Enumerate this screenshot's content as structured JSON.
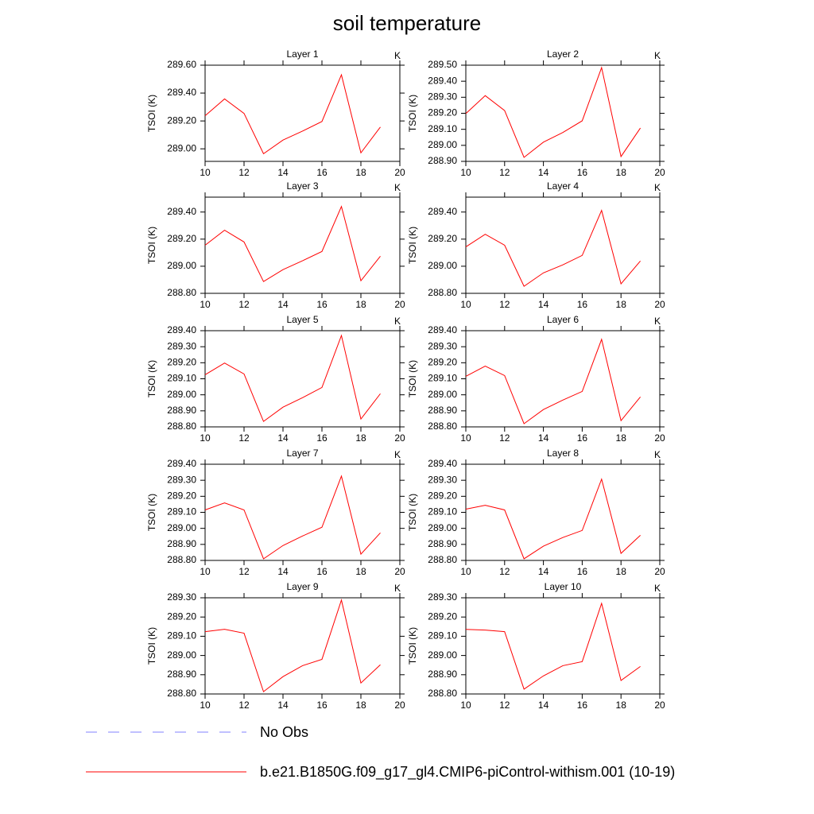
{
  "title": "soil temperature",
  "legend": [
    {
      "label": "No Obs",
      "color": "#8080ff",
      "dash": true
    },
    {
      "label": "b.e21.B1850G.f09_g17_gl4.CMIP6-piControl-withism.001 (10-19)",
      "color": "#ff0000",
      "dash": false
    }
  ],
  "chart_data": [
    {
      "type": "line",
      "title": "Layer 1",
      "units": "K",
      "ylabel": "TSOI  (K)",
      "color": "#ff0000",
      "x": [
        10,
        11,
        12,
        13,
        14,
        15,
        16,
        17,
        18,
        19
      ],
      "values": [
        289.237,
        289.358,
        289.254,
        288.965,
        289.063,
        289.127,
        289.196,
        289.531,
        288.971,
        289.156
      ],
      "xlim": [
        10,
        20
      ],
      "xticks": [
        10,
        12,
        14,
        16,
        18,
        20
      ],
      "ylim": [
        288.91,
        289.6
      ],
      "yticks": [
        {
          "value": 289.0,
          "label": "289.00"
        },
        {
          "value": 289.2,
          "label": "289.20"
        },
        {
          "value": 289.4,
          "label": "289.40"
        },
        {
          "value": 289.6,
          "label": "289.60"
        }
      ]
    },
    {
      "type": "line",
      "title": "Layer 2",
      "units": "K",
      "ylabel": "TSOI  (K)",
      "color": "#ff0000",
      "x": [
        10,
        11,
        12,
        13,
        14,
        15,
        16,
        17,
        18,
        19
      ],
      "values": [
        289.198,
        289.31,
        289.217,
        288.925,
        289.02,
        289.08,
        289.153,
        289.485,
        288.93,
        289.108
      ],
      "xlim": [
        10,
        20
      ],
      "xticks": [
        10,
        12,
        14,
        16,
        18,
        20
      ],
      "ylim": [
        288.9,
        289.5
      ],
      "yticks": [
        {
          "value": 288.9,
          "label": "288.90"
        },
        {
          "value": 289.0,
          "label": "289.00"
        },
        {
          "value": 289.1,
          "label": "289.10"
        },
        {
          "value": 289.2,
          "label": "289.20"
        },
        {
          "value": 289.3,
          "label": "289.30"
        },
        {
          "value": 289.4,
          "label": "289.40"
        },
        {
          "value": 289.5,
          "label": "289.50"
        }
      ]
    },
    {
      "type": "line",
      "title": "Layer 3",
      "units": "K",
      "ylabel": "TSOI  (K)",
      "color": "#ff0000",
      "x": [
        10,
        11,
        12,
        13,
        14,
        15,
        16,
        17,
        18,
        19
      ],
      "values": [
        289.155,
        289.266,
        289.179,
        288.887,
        288.975,
        289.04,
        289.109,
        289.441,
        288.893,
        289.074
      ],
      "xlim": [
        10,
        20
      ],
      "xticks": [
        10,
        12,
        14,
        16,
        18,
        20
      ],
      "ylim": [
        288.8,
        289.51
      ],
      "yticks": [
        {
          "value": 288.8,
          "label": "288.80"
        },
        {
          "value": 289.0,
          "label": "289.00"
        },
        {
          "value": 289.2,
          "label": "289.20"
        },
        {
          "value": 289.4,
          "label": "289.40"
        }
      ]
    },
    {
      "type": "line",
      "title": "Layer 4",
      "units": "K",
      "ylabel": "TSOI  (K)",
      "color": "#ff0000",
      "x": [
        10,
        11,
        12,
        13,
        14,
        15,
        16,
        17,
        18,
        19
      ],
      "values": [
        289.143,
        289.236,
        289.155,
        288.852,
        288.951,
        289.01,
        289.08,
        289.412,
        288.87,
        289.039
      ],
      "xlim": [
        10,
        20
      ],
      "xticks": [
        10,
        12,
        14,
        16,
        18,
        20
      ],
      "ylim": [
        288.8,
        289.51
      ],
      "yticks": [
        {
          "value": 288.8,
          "label": "288.80"
        },
        {
          "value": 289.0,
          "label": "289.00"
        },
        {
          "value": 289.2,
          "label": "289.20"
        },
        {
          "value": 289.4,
          "label": "289.40"
        }
      ]
    },
    {
      "type": "line",
      "title": "Layer 5",
      "units": "K",
      "ylabel": "TSOI  (K)",
      "color": "#ff0000",
      "x": [
        10,
        11,
        12,
        13,
        14,
        15,
        16,
        17,
        18,
        19
      ],
      "values": [
        289.125,
        289.198,
        289.13,
        288.834,
        288.923,
        288.982,
        289.046,
        289.37,
        288.849,
        289.007
      ],
      "xlim": [
        10,
        20
      ],
      "xticks": [
        10,
        12,
        14,
        16,
        18,
        20
      ],
      "ylim": [
        288.8,
        289.4
      ],
      "yticks": [
        {
          "value": 288.8,
          "label": "288.80"
        },
        {
          "value": 288.9,
          "label": "288.90"
        },
        {
          "value": 289.0,
          "label": "289.00"
        },
        {
          "value": 289.1,
          "label": "289.10"
        },
        {
          "value": 289.2,
          "label": "289.20"
        },
        {
          "value": 289.3,
          "label": "289.30"
        },
        {
          "value": 289.4,
          "label": "289.40"
        }
      ]
    },
    {
      "type": "line",
      "title": "Layer 6",
      "units": "K",
      "ylabel": "TSOI  (K)",
      "color": "#ff0000",
      "x": [
        10,
        11,
        12,
        13,
        14,
        15,
        16,
        17,
        18,
        19
      ],
      "values": [
        289.115,
        289.179,
        289.12,
        288.82,
        288.908,
        288.967,
        289.021,
        289.346,
        288.839,
        288.987
      ],
      "xlim": [
        10,
        20
      ],
      "xticks": [
        10,
        12,
        14,
        16,
        18,
        20
      ],
      "ylim": [
        288.8,
        289.4
      ],
      "yticks": [
        {
          "value": 288.8,
          "label": "288.80"
        },
        {
          "value": 288.9,
          "label": "288.90"
        },
        {
          "value": 289.0,
          "label": "289.00"
        },
        {
          "value": 289.1,
          "label": "289.10"
        },
        {
          "value": 289.2,
          "label": "289.20"
        },
        {
          "value": 289.3,
          "label": "289.30"
        },
        {
          "value": 289.4,
          "label": "289.40"
        }
      ]
    },
    {
      "type": "line",
      "title": "Layer 7",
      "units": "K",
      "ylabel": "TSOI  (K)",
      "color": "#ff0000",
      "x": [
        10,
        11,
        12,
        13,
        14,
        15,
        16,
        17,
        18,
        19
      ],
      "values": [
        289.115,
        289.159,
        289.115,
        288.81,
        288.893,
        288.952,
        289.007,
        289.326,
        288.839,
        288.972
      ],
      "xlim": [
        10,
        20
      ],
      "xticks": [
        10,
        12,
        14,
        16,
        18,
        20
      ],
      "ylim": [
        288.8,
        289.4
      ],
      "yticks": [
        {
          "value": 288.8,
          "label": "288.80"
        },
        {
          "value": 288.9,
          "label": "288.90"
        },
        {
          "value": 289.0,
          "label": "289.00"
        },
        {
          "value": 289.1,
          "label": "289.10"
        },
        {
          "value": 289.2,
          "label": "289.20"
        },
        {
          "value": 289.3,
          "label": "289.30"
        },
        {
          "value": 289.4,
          "label": "289.40"
        }
      ]
    },
    {
      "type": "line",
      "title": "Layer 8",
      "units": "K",
      "ylabel": "TSOI  (K)",
      "color": "#ff0000",
      "x": [
        10,
        11,
        12,
        13,
        14,
        15,
        16,
        17,
        18,
        19
      ],
      "values": [
        289.12,
        289.144,
        289.115,
        288.81,
        288.889,
        288.943,
        288.987,
        289.307,
        288.844,
        288.957
      ],
      "xlim": [
        10,
        20
      ],
      "xticks": [
        10,
        12,
        14,
        16,
        18,
        20
      ],
      "ylim": [
        288.8,
        289.4
      ],
      "yticks": [
        {
          "value": 288.8,
          "label": "288.80"
        },
        {
          "value": 288.9,
          "label": "288.90"
        },
        {
          "value": 289.0,
          "label": "289.00"
        },
        {
          "value": 289.1,
          "label": "289.10"
        },
        {
          "value": 289.2,
          "label": "289.20"
        },
        {
          "value": 289.3,
          "label": "289.30"
        },
        {
          "value": 289.4,
          "label": "289.40"
        }
      ]
    },
    {
      "type": "line",
      "title": "Layer 9",
      "units": "K",
      "ylabel": "TSOI  (K)",
      "color": "#ff0000",
      "x": [
        10,
        11,
        12,
        13,
        14,
        15,
        16,
        17,
        18,
        19
      ],
      "values": [
        289.124,
        289.136,
        289.116,
        288.812,
        288.89,
        288.947,
        288.98,
        289.288,
        288.857,
        288.952
      ],
      "xlim": [
        10,
        20
      ],
      "xticks": [
        10,
        12,
        14,
        16,
        18,
        20
      ],
      "ylim": [
        288.8,
        289.3
      ],
      "yticks": [
        {
          "value": 288.8,
          "label": "288.80"
        },
        {
          "value": 288.9,
          "label": "288.90"
        },
        {
          "value": 289.0,
          "label": "289.00"
        },
        {
          "value": 289.1,
          "label": "289.10"
        },
        {
          "value": 289.2,
          "label": "289.20"
        },
        {
          "value": 289.3,
          "label": "289.30"
        }
      ]
    },
    {
      "type": "line",
      "title": "Layer 10",
      "units": "K",
      "ylabel": "TSOI  (K)",
      "color": "#ff0000",
      "x": [
        10,
        11,
        12,
        13,
        14,
        15,
        16,
        17,
        18,
        19
      ],
      "values": [
        289.136,
        289.132,
        289.124,
        288.825,
        288.894,
        288.947,
        288.968,
        289.271,
        288.87,
        288.943
      ],
      "xlim": [
        10,
        20
      ],
      "xticks": [
        10,
        12,
        14,
        16,
        18,
        20
      ],
      "ylim": [
        288.8,
        289.3
      ],
      "yticks": [
        {
          "value": 288.8,
          "label": "288.80"
        },
        {
          "value": 288.9,
          "label": "288.90"
        },
        {
          "value": 289.0,
          "label": "289.00"
        },
        {
          "value": 289.1,
          "label": "289.10"
        },
        {
          "value": 289.2,
          "label": "289.20"
        },
        {
          "value": 289.3,
          "label": "289.30"
        }
      ]
    }
  ]
}
